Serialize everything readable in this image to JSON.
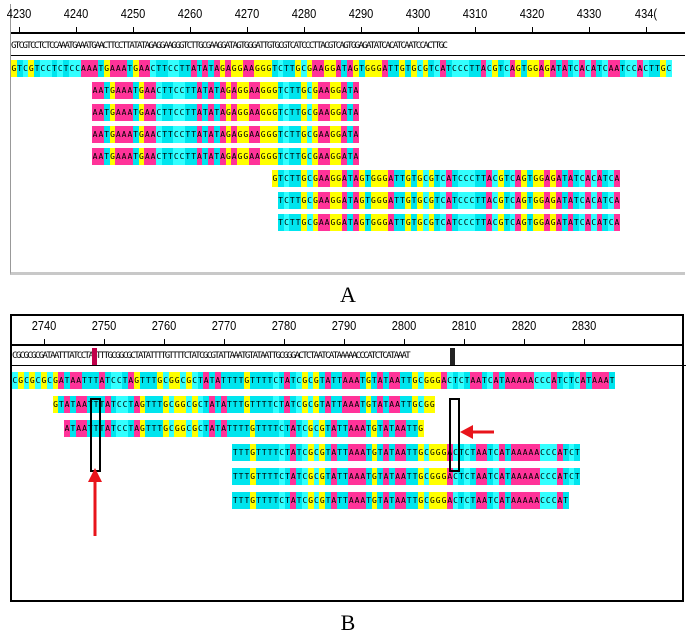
{
  "colors": {
    "A": "#ff3399",
    "T": "#00e5ee",
    "G": "#ffff00",
    "C": "#33ffff",
    "mismatch": "#c0004a",
    "arrow": "#e8141b"
  },
  "panelA": {
    "label": "A",
    "ruler": [
      "4230",
      "4240",
      "4250",
      "4260",
      "4270",
      "4280",
      "4290",
      "4300",
      "4310",
      "4320",
      "4330",
      "434("
    ],
    "consensus": "GTCGTCCTCTCCAAATGAAATGAACTTCCTTATATAGAGGAAGGGTCTTGCGAAGGATAGTGGGATTGTGCGTCATCCCTTACGTCAGTGGAGATATCACATCAATCCACTTGC",
    "reads": [
      {
        "seq": "GTCGTCCTCTCCAAATGAAATGAACTTCCTTATATAGAGGAAGGGTCTTGCGAAGGATAGTGGGATTGTGCGTCATCCCTTACGTCAGTGGAGATATCACATCAATCCACTTGC",
        "offset": 0
      },
      {
        "seq": "AATGAAATGAACTTCCTTATATAGAGGAAGGGTCTTGCGAAGGATA",
        "offset": 14
      },
      {
        "seq": "AATGAAATGAACTTCCTTATATAGAGGAAGGGTCTTGCGAAGGATA",
        "offset": 14
      },
      {
        "seq": "AATGAAATGAACTTCCTTATATAGAGGAAGGGTCTTGCGAAGGATA",
        "offset": 14
      },
      {
        "seq": "AATGAAATGAACTTCCTTATATAGAGGAAGGGTCTTGCGAAGGATA",
        "offset": 14
      },
      {
        "seq": "GTCTTGCGAAGGATAGTGGGATTGTGCGTCATCCCTTACGTCAGTGGAGATATCACATCA",
        "offset": 45
      },
      {
        "seq": "TCTTGCGAAGGATAGTGGGATTGTGCGTCATCCCTTACGTCAGTGGAGATATCACATCA",
        "offset": 46
      },
      {
        "seq": "TCTTGCGAAGGATAGTGGGATTGTGCGTCATCCCTTACGTCAGTGGAGATATCACATCA",
        "offset": 46
      }
    ]
  },
  "panelB": {
    "label": "B",
    "ruler": [
      "2740",
      "2750",
      "2760",
      "2770",
      "2780",
      "2790",
      "2800",
      "2810",
      "2820",
      "2830"
    ],
    "consensus": "CGCGCGCGATAATTTATCCTAGTTTGCGGCGCTATATTTTGTTTTCTATCGCGTATTAAATGTATAATTGCGGGACTCTAATCATAAAAACCCATCTCATAAAT",
    "reads": [
      {
        "seq": "CGCGCGCGATAATTTATCCTAGTTTGCGGCGCTATATTTTGTTTTCTATCGCGTATTAAATGTATAATTGCGGGACTCTAATCATAAAAACCCATCTCATAAAT",
        "offset": 0
      },
      {
        "seq": "GTATAATTTATCCTAGTTTGCGGCGCTATATTTGTTTTCTATCGCGTATTAAATGTATAATTGCGG",
        "offset": 7
      },
      {
        "seq": "ATAATTTATCCTAGTTTGCGGCGCTATATTTTGTTTTCTATCGCGTATTAAATGTATAATTG",
        "offset": 9
      },
      {
        "seq": "TTTGTTTTCTATCGCGTATTAAATGTATAATTGCGGGACTCTAATCATAAAAACCCATCT",
        "offset": 38
      },
      {
        "seq": "TTTGTTTTCTATCGCGTATTAAATGTATAATTGCGGGACTCTAATCATAAAAACCCATCT",
        "offset": 38
      },
      {
        "seq": "TTTGTTTTCTATCGCGTATTAAATGTATAATTGCGGGACTCTAATCATAAAAACCCAT",
        "offset": 38
      }
    ]
  }
}
